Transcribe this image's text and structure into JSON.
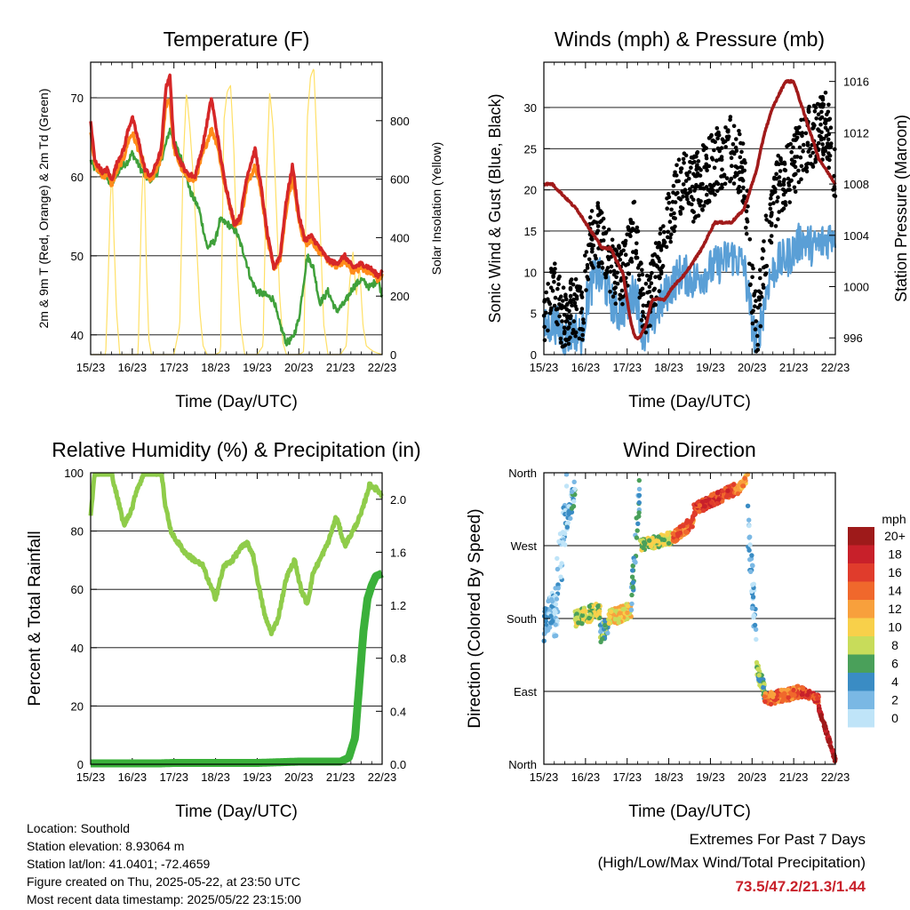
{
  "colors": {
    "temp_2m": "#d62728",
    "temp_9m": "#ff8c1a",
    "dewpoint": "#3fa03a",
    "insolation": "#ffe066",
    "wind": "#5a9fd6",
    "gust": "#000000",
    "pressure": "#a11a1a",
    "rh": "#8fcc4a",
    "rain": "#3ab03a",
    "extremes": "#c8202a"
  },
  "info": {
    "location": "Location: Southold",
    "elevation": "Station elevation: 8.93064 m",
    "latlon": "Station lat/lon: 41.0401; -72.4659",
    "created": "Figure created on Thu, 2025-05-22, at 23:50 UTC",
    "recent": "Most recent data timestamp: 2025/05/22 23:15:00"
  },
  "extremes": {
    "title": "Extremes For Past 7 Days",
    "subtitle": "(High/Low/Max Wind/Total Precipitation)",
    "values": "73.5/47.2/21.3/1.44"
  },
  "chart_data": [
    {
      "type": "line",
      "title": "Temperature (F)",
      "xlabel": "Time (Day/UTC)",
      "ylabel": "2m & 9m T (Red, Orange) & 2m Td (Green)",
      "y2label": "Solar Insolation (Yellow)",
      "xticks": [
        "15/23",
        "16/23",
        "17/23",
        "18/23",
        "19/23",
        "20/23",
        "21/23",
        "22/23"
      ],
      "xlim": [
        0,
        7
      ],
      "ylim": [
        37.5,
        74.5
      ],
      "yticks": [
        40,
        50,
        60,
        70
      ],
      "y2lim": [
        0,
        1000
      ],
      "y2ticks": [
        0,
        200,
        400,
        600,
        800
      ],
      "series": [
        {
          "id": "t2m",
          "x": [
            0,
            0.1,
            0.3,
            0.4,
            0.5,
            0.65,
            0.8,
            0.9,
            1.0,
            1.15,
            1.3,
            1.45,
            1.6,
            1.7,
            1.8,
            1.9,
            2.0,
            2.15,
            2.3,
            2.5,
            2.7,
            2.9,
            3.05,
            3.2,
            3.45,
            3.6,
            3.75,
            3.95,
            4.1,
            4.25,
            4.4,
            4.55,
            4.7,
            4.85,
            5.0,
            5.15,
            5.3,
            5.5,
            5.7,
            5.9,
            6.1,
            6.3,
            6.5,
            6.7,
            6.9,
            7.0
          ],
          "values": [
            67,
            62,
            60.5,
            61,
            59.5,
            62,
            63.5,
            66,
            67.5,
            64.5,
            61,
            60,
            62,
            63.5,
            71,
            73,
            64,
            62,
            60.5,
            60,
            64,
            70,
            65,
            60,
            54,
            55,
            60,
            63.5,
            58.5,
            52.5,
            48.5,
            50,
            57,
            61.5,
            55,
            52,
            52.5,
            51,
            49.5,
            49,
            50,
            48.5,
            49,
            48.5,
            47.5,
            48
          ]
        },
        {
          "id": "t9m",
          "x": [
            0,
            0.1,
            0.3,
            0.4,
            0.5,
            0.65,
            0.8,
            0.9,
            1.0,
            1.15,
            1.3,
            1.45,
            1.6,
            1.7,
            1.8,
            1.9,
            2.0,
            2.15,
            2.3,
            2.5,
            2.7,
            2.9,
            3.05,
            3.2,
            3.45,
            3.6,
            3.75,
            3.95,
            4.1,
            4.25,
            4.4,
            4.55,
            4.7,
            4.85,
            5.0,
            5.15,
            5.3,
            5.5,
            5.7,
            5.9,
            6.1,
            6.3,
            6.5,
            6.7,
            6.9,
            7.0
          ],
          "values": [
            66,
            61.5,
            60,
            60.5,
            59,
            61,
            62.5,
            64.5,
            65.5,
            63.5,
            60.5,
            59.5,
            61,
            62.5,
            69,
            70,
            63.5,
            61.5,
            60,
            59.5,
            63,
            66,
            64,
            59.5,
            54,
            54.5,
            59,
            61.5,
            58,
            52,
            48.5,
            49.5,
            56,
            60,
            54.5,
            51.5,
            52,
            50.5,
            49.5,
            48.5,
            49.5,
            48,
            48.5,
            48,
            47,
            47.5
          ]
        },
        {
          "id": "td",
          "x": [
            0,
            0.1,
            0.3,
            0.5,
            0.7,
            0.9,
            1.0,
            1.2,
            1.4,
            1.6,
            1.8,
            1.9,
            2.0,
            2.2,
            2.4,
            2.6,
            2.8,
            3.0,
            3.1,
            3.3,
            3.5,
            3.7,
            3.85,
            4.0,
            4.2,
            4.4,
            4.5,
            4.7,
            4.85,
            5.0,
            5.2,
            5.35,
            5.5,
            5.7,
            5.9,
            6.1,
            6.3,
            6.5,
            6.7,
            6.9,
            7.0
          ],
          "values": [
            62,
            61,
            60.5,
            59,
            61,
            62,
            63,
            61,
            59.5,
            60.5,
            64,
            66,
            64.5,
            62,
            58,
            56,
            51,
            52,
            54.5,
            54,
            53,
            50,
            47,
            45.5,
            45,
            44.5,
            42,
            39,
            39.5,
            42,
            50,
            48.5,
            44,
            45.5,
            43,
            44,
            46,
            47,
            46,
            47,
            45
          ]
        },
        {
          "id": "ins",
          "x": [
            0,
            0.18,
            0.36,
            0.42,
            0.48,
            0.52,
            0.56,
            0.62,
            0.7,
            0.8,
            1.0,
            1.14,
            1.22,
            1.28,
            1.34,
            1.4,
            1.46,
            1.6,
            1.8,
            2.0,
            2.14,
            2.22,
            2.3,
            2.38,
            2.46,
            2.54,
            2.62,
            2.7,
            2.8,
            3.0,
            3.12,
            3.2,
            3.28,
            3.36,
            3.44,
            3.52,
            3.6,
            3.7,
            3.8,
            4.0,
            4.14,
            4.22,
            4.3,
            4.38,
            4.46,
            4.54,
            4.62,
            4.7,
            4.8,
            5.0,
            5.12,
            5.2,
            5.28,
            5.36,
            5.44,
            5.52,
            5.6,
            5.7,
            5.8,
            6.0,
            6.14,
            6.22,
            6.3,
            6.38,
            6.46,
            6.54,
            6.62,
            6.7,
            6.8,
            7.0
          ],
          "values": [
            0,
            0,
            0,
            250,
            560,
            620,
            400,
            150,
            0,
            0,
            0,
            0,
            500,
            700,
            300,
            50,
            0,
            0,
            0,
            0,
            100,
            650,
            900,
            780,
            620,
            400,
            150,
            30,
            0,
            0,
            10,
            800,
            900,
            920,
            700,
            300,
            100,
            0,
            0,
            0,
            30,
            600,
            900,
            780,
            500,
            200,
            40,
            0,
            0,
            0,
            10,
            800,
            950,
            980,
            700,
            400,
            100,
            0,
            0,
            0,
            30,
            250,
            350,
            200,
            300,
            100,
            30,
            20,
            10,
            0
          ]
        }
      ]
    },
    {
      "type": "line",
      "title": "Winds (mph) & Pressure (mb)",
      "xlabel": "Time (Day/UTC)",
      "ylabel": "Sonic Wind & Gust (Blue, Black)",
      "y2label": "Station Pressure (Maroon)",
      "xticks": [
        "15/23",
        "16/23",
        "17/23",
        "18/23",
        "19/23",
        "20/23",
        "21/23",
        "22/23"
      ],
      "xlim": [
        0,
        7
      ],
      "ylim": [
        0,
        35.5
      ],
      "yticks": [
        0,
        5,
        10,
        15,
        20,
        25,
        30
      ],
      "y2lim": [
        994.7,
        1017.5
      ],
      "y2ticks": [
        996,
        1000,
        1004,
        1008,
        1012,
        1016
      ],
      "series": [
        {
          "id": "wind",
          "x": [
            0,
            0.25,
            0.5,
            0.75,
            0.9,
            1.05,
            1.25,
            1.5,
            1.75,
            2.0,
            2.2,
            2.4,
            2.6,
            2.8,
            3.0,
            3.3,
            3.6,
            3.9,
            4.2,
            4.5,
            4.8,
            5.0,
            5.1,
            5.25,
            5.4,
            5.6,
            5.9,
            6.2,
            6.5,
            6.8,
            7.0
          ],
          "values": [
            3,
            4,
            2,
            3,
            2,
            7,
            10,
            8,
            5,
            6,
            8,
            2,
            4,
            6,
            8,
            10,
            9,
            10,
            11,
            12,
            11,
            4,
            1,
            5,
            9,
            11,
            12,
            14,
            13,
            14,
            15
          ]
        },
        {
          "id": "gust",
          "x": [
            0,
            0.25,
            0.5,
            0.75,
            0.9,
            1.05,
            1.25,
            1.5,
            1.75,
            2.0,
            2.2,
            2.4,
            2.6,
            2.8,
            3.0,
            3.3,
            3.6,
            3.9,
            4.2,
            4.5,
            4.8,
            5.0,
            5.1,
            5.25,
            5.4,
            5.6,
            5.9,
            6.2,
            6.5,
            6.8,
            7.0
          ],
          "values": [
            5,
            8,
            4,
            6,
            4,
            12,
            15,
            12,
            9,
            11,
            16,
            5,
            8,
            12,
            16,
            21,
            20,
            22,
            24,
            25,
            22,
            8,
            3,
            9,
            16,
            20,
            22,
            25,
            27,
            28,
            22
          ]
        },
        {
          "id": "pres",
          "x": [
            0,
            0.2,
            0.5,
            0.8,
            1.0,
            1.2,
            1.4,
            1.6,
            1.75,
            1.9,
            2.0,
            2.1,
            2.2,
            2.3,
            2.45,
            2.6,
            2.9,
            3.1,
            3.4,
            3.8,
            4.1,
            4.5,
            4.8,
            5.1,
            5.3,
            5.5,
            5.8,
            6.0,
            6.2,
            6.4,
            6.6,
            6.8,
            7.0
          ],
          "values": [
            1008,
            1008,
            1007,
            1006,
            1005,
            1004,
            1003,
            1003,
            1002,
            1001,
            999,
            997,
            996,
            996,
            997,
            999,
            999,
            1000,
            1001,
            1003,
            1005,
            1005,
            1006,
            1009,
            1012,
            1014,
            1016,
            1016,
            1014,
            1012,
            1010,
            1009,
            1008
          ]
        }
      ]
    },
    {
      "type": "line",
      "title": "Relative Humidity (%) & Precipitation (in)",
      "xlabel": "Time (Day/UTC)",
      "ylabel": "Percent & Total Rainfall",
      "xticks": [
        "15/23",
        "16/23",
        "17/23",
        "18/23",
        "19/23",
        "20/23",
        "21/23",
        "22/23"
      ],
      "xlim": [
        0,
        7
      ],
      "ylim": [
        0,
        100
      ],
      "yticks": [
        0,
        20,
        40,
        60,
        80,
        100
      ],
      "y2lim": [
        0,
        2.2
      ],
      "y2ticks": [
        0.0,
        0.4,
        0.8,
        1.2,
        1.6,
        2.0
      ],
      "series": [
        {
          "id": "rh",
          "x": [
            0,
            0.1,
            0.3,
            0.5,
            0.7,
            0.8,
            1.0,
            1.1,
            1.3,
            1.5,
            1.7,
            1.8,
            1.95,
            2.1,
            2.3,
            2.5,
            2.7,
            2.85,
            3.0,
            3.2,
            3.4,
            3.6,
            3.75,
            3.9,
            4.05,
            4.2,
            4.35,
            4.5,
            4.7,
            4.9,
            5.05,
            5.2,
            5.35,
            5.5,
            5.7,
            5.9,
            6.1,
            6.3,
            6.5,
            6.7,
            6.9,
            7.0
          ],
          "values": [
            86,
            100,
            100,
            100,
            88,
            82,
            88,
            94,
            100,
            100,
            100,
            88,
            79,
            76,
            72,
            70,
            68,
            62,
            57,
            68,
            70,
            74,
            76,
            72,
            60,
            50,
            45,
            50,
            64,
            70,
            60,
            55,
            66,
            70,
            76,
            85,
            75,
            80,
            86,
            96,
            94,
            92
          ]
        },
        {
          "id": "rain",
          "x": [
            0,
            1,
            2,
            3,
            4,
            5,
            6.0,
            6.2,
            6.35,
            6.45,
            6.55,
            6.65,
            6.75,
            6.85,
            7.0
          ],
          "values": [
            0,
            0,
            0.01,
            0.01,
            0.01,
            0.02,
            0.02,
            0.05,
            0.2,
            0.6,
            1.0,
            1.25,
            1.35,
            1.42,
            1.44
          ]
        }
      ]
    },
    {
      "type": "scatter",
      "title": "Wind Direction",
      "xlabel": "Time (Day/UTC)",
      "ylabel": "Direction (Colored By Speed)",
      "xticks": [
        "15/23",
        "16/23",
        "17/23",
        "18/23",
        "19/23",
        "20/23",
        "21/23",
        "22/23"
      ],
      "xlim": [
        0,
        7
      ],
      "ylim": [
        0,
        360
      ],
      "yticks": [
        "North",
        "East",
        "South",
        "West",
        "North"
      ],
      "legend_title": "mph",
      "legend": [
        "20+",
        "18",
        "16",
        "14",
        "12",
        "10",
        "8",
        "6",
        "4",
        "2",
        "0"
      ],
      "legend_colors": [
        "#9e1a1a",
        "#c8202a",
        "#e03c2c",
        "#f0682c",
        "#f8a03c",
        "#f8d04a",
        "#c8dc5a",
        "#4aa05a",
        "#3a8cc4",
        "#7ab8e4",
        "#bfe4f8"
      ],
      "segments": [
        {
          "x0": 0.0,
          "x1": 0.25,
          "d0": 170,
          "d1": 200,
          "spread": 40,
          "speed": 2
        },
        {
          "x0": 0.25,
          "x1": 0.55,
          "d0": 180,
          "d1": 330,
          "spread": 90,
          "speed": 1
        },
        {
          "x0": 0.55,
          "x1": 0.75,
          "d0": 300,
          "d1": 340,
          "spread": 30,
          "speed": 3
        },
        {
          "x0": 0.75,
          "x1": 1.35,
          "d0": 180,
          "d1": 190,
          "spread": 20,
          "speed": 8
        },
        {
          "x0": 1.35,
          "x1": 1.55,
          "d0": 160,
          "d1": 170,
          "spread": 25,
          "speed": 5
        },
        {
          "x0": 1.55,
          "x1": 2.1,
          "d0": 180,
          "d1": 190,
          "spread": 20,
          "speed": 10
        },
        {
          "x0": 2.1,
          "x1": 2.3,
          "d0": 200,
          "d1": 340,
          "spread": 40,
          "speed": 4
        },
        {
          "x0": 2.3,
          "x1": 3.1,
          "d0": 270,
          "d1": 280,
          "spread": 15,
          "speed": 8
        },
        {
          "x0": 3.1,
          "x1": 3.6,
          "d0": 280,
          "d1": 300,
          "spread": 15,
          "speed": 14
        },
        {
          "x0": 3.6,
          "x1": 4.6,
          "d0": 315,
          "d1": 340,
          "spread": 15,
          "speed": 16
        },
        {
          "x0": 4.6,
          "x1": 4.9,
          "d0": 335,
          "d1": 355,
          "spread": 10,
          "speed": 12
        },
        {
          "x0": 4.9,
          "x1": 5.1,
          "d0": 300,
          "d1": 150,
          "spread": 60,
          "speed": 2
        },
        {
          "x0": 5.1,
          "x1": 5.3,
          "d0": 120,
          "d1": 90,
          "spread": 20,
          "speed": 6
        },
        {
          "x0": 5.3,
          "x1": 6.2,
          "d0": 80,
          "d1": 90,
          "spread": 15,
          "speed": 14
        },
        {
          "x0": 6.2,
          "x1": 6.6,
          "d0": 90,
          "d1": 80,
          "spread": 10,
          "speed": 16
        },
        {
          "x0": 6.6,
          "x1": 7.0,
          "d0": 70,
          "d1": 5,
          "spread": 6,
          "speed": 20
        }
      ]
    }
  ]
}
